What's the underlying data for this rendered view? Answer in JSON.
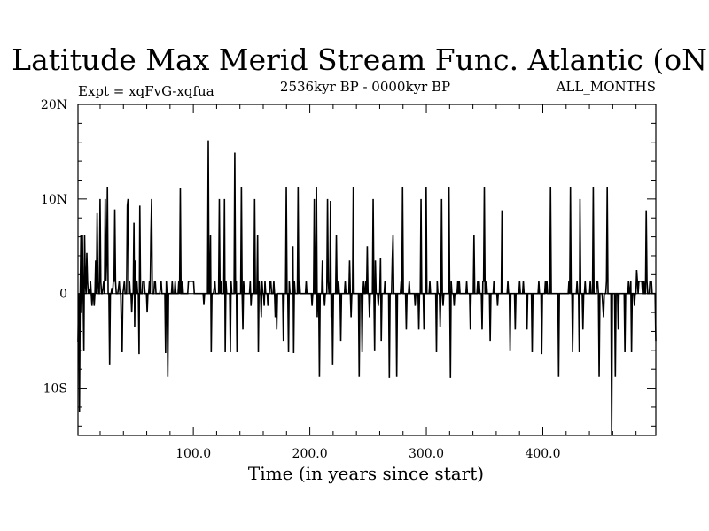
{
  "chart_data": {
    "type": "line",
    "title": "Latitude Max Merid Stream Func. Atlantic (oN)",
    "subtitle_left": "Expt = xqFvG-xqfua",
    "subtitle_center": "2536kyr BP - 0000kyr BP",
    "subtitle_right": "ALL_MONTHS",
    "xlabel": "Time (in years since start)",
    "ylabel": "",
    "xlim": [
      1,
      497
    ],
    "ylim": [
      -15,
      20
    ],
    "grid": false,
    "x_ticks": [
      {
        "value": 100,
        "label": "100.0"
      },
      {
        "value": 200,
        "label": "200.0"
      },
      {
        "value": 300,
        "label": "300.0"
      },
      {
        "value": 400,
        "label": "400.0"
      }
    ],
    "y_ticks": [
      {
        "value": 20,
        "label": "20N"
      },
      {
        "value": 10,
        "label": "10N"
      },
      {
        "value": 0,
        "label": "0"
      },
      {
        "value": -10,
        "label": "10S"
      }
    ],
    "series": [
      {
        "values": [
          -5.1,
          0,
          -12.5,
          0,
          6.2,
          -2,
          6.2,
          0,
          -6.1,
          6.2,
          1.2,
          0,
          4.3,
          1.3,
          0,
          0.5,
          0,
          1.3,
          0,
          -1.3,
          0,
          0,
          -1.3,
          0,
          3.5,
          0,
          8.5,
          1.3,
          0,
          0,
          10,
          1.3,
          0,
          0,
          0.6,
          1.3,
          0,
          10,
          1.3,
          3.5,
          11.3,
          0,
          0,
          -7.5,
          0,
          0,
          0.6,
          0,
          1.3,
          1.3,
          8.9,
          1.3,
          0,
          0,
          0,
          0.6,
          1.3,
          0,
          0,
          -3.8,
          -6.2,
          0,
          0.6,
          1.3,
          0,
          0,
          0,
          9.3,
          10,
          0,
          1.3,
          0,
          0,
          -2,
          0,
          0,
          7.5,
          -3.5,
          3.5,
          0,
          1.3,
          0,
          0,
          -6.4,
          9.3,
          0,
          0,
          0,
          1.3,
          1.3,
          1.3,
          0,
          0,
          0,
          -2,
          0,
          0,
          1.3,
          0,
          6.2,
          10,
          0,
          0,
          0,
          1.3,
          1.3,
          0,
          0,
          0,
          0,
          0,
          0,
          0.6,
          1.3,
          0,
          0,
          0,
          0,
          0,
          -6.3,
          1.3,
          0,
          -8.8,
          0,
          0,
          0,
          0,
          0,
          1.3,
          0,
          0,
          0,
          1.3,
          0,
          0,
          0,
          0,
          1.3,
          0,
          11.2,
          0,
          0,
          1.3,
          0,
          0,
          0,
          0,
          0,
          0,
          0,
          1.3,
          1.3,
          1.3,
          1.3,
          1.3,
          1.3,
          1.3,
          1.3,
          0,
          0,
          0,
          0,
          0,
          0,
          0,
          0,
          0,
          0,
          0,
          0,
          0,
          -1.2,
          0,
          0,
          0,
          0,
          0,
          16.2,
          0,
          0,
          6.2,
          -6.2,
          0,
          0,
          0,
          0.6,
          1.3,
          0,
          0,
          0,
          0,
          0,
          10,
          0,
          1.3,
          0,
          0,
          0,
          0,
          10,
          -6.2,
          1.3,
          0,
          0,
          0,
          0,
          0,
          -6.2,
          1.3,
          0,
          0,
          0,
          0,
          14.9,
          0,
          1.3,
          -6.2,
          0,
          0,
          0,
          0,
          0,
          11.3,
          0,
          -3.8,
          1.3,
          0,
          0,
          0,
          0,
          0,
          0,
          0,
          0,
          1.3,
          -1.3,
          0,
          0,
          0,
          0,
          10,
          0,
          0,
          0,
          6.2,
          -6.2,
          1.3,
          0,
          0,
          -2.5,
          1.3,
          0,
          0,
          -1.3,
          1.3,
          0,
          0,
          0,
          -1.3,
          0,
          0,
          1.3,
          1.3,
          0,
          0,
          0,
          1.3,
          0,
          -2.5,
          0,
          -3.8,
          0,
          0,
          0,
          0,
          0,
          0,
          0,
          0,
          -5,
          0,
          0,
          0,
          11.3,
          0,
          0,
          -6.2,
          1.3,
          0,
          0,
          0,
          0,
          5,
          -6.3,
          1.3,
          0,
          0,
          0,
          0,
          11.3,
          0,
          1.3,
          0,
          0,
          0,
          0,
          0,
          0,
          0,
          0,
          1.3,
          0,
          0,
          0,
          0,
          0,
          0,
          0,
          -1.3,
          0,
          0,
          10,
          0,
          0,
          11.3,
          -2.5,
          0,
          0,
          -8.8,
          0,
          0,
          0,
          3.5,
          0,
          0,
          -1.3,
          0,
          0,
          0,
          10,
          1.3,
          0,
          0,
          9.8,
          -2.5,
          0,
          -7.5,
          0,
          0,
          0,
          0,
          6.2,
          0,
          0,
          1.3,
          0,
          0,
          -5,
          0,
          0,
          0,
          0,
          0,
          1.3,
          0,
          0,
          0,
          0,
          0,
          3.5,
          0,
          -2.5,
          0,
          0,
          11.3,
          0,
          0,
          0,
          0,
          0,
          0,
          0,
          -8.8,
          0,
          0,
          0,
          -6.2,
          0,
          1.3,
          0,
          0,
          1.3,
          0,
          5,
          0,
          0,
          -2.5,
          0,
          0,
          0,
          0,
          10,
          0,
          -6.1,
          3.5,
          0,
          0,
          0,
          -1.3,
          0,
          0,
          3.8,
          -5,
          0,
          0,
          0,
          0,
          1.3,
          0,
          0,
          0,
          0,
          0,
          -8.9,
          0,
          0,
          0,
          3.7,
          6.2,
          0,
          0,
          0,
          0,
          -8.8,
          0,
          0,
          0,
          0,
          0,
          1.3,
          0,
          11.3,
          0,
          0,
          0,
          0,
          -3.8,
          0,
          0,
          0,
          1.3,
          0,
          0,
          0,
          0,
          0,
          0,
          0,
          -1.3,
          0,
          0,
          0,
          0,
          -3.8,
          0,
          0,
          10,
          0,
          0,
          0,
          -3.8,
          0,
          0,
          11.3,
          0,
          0,
          0,
          0,
          1.3,
          0,
          0,
          0,
          0,
          0,
          0,
          0,
          0,
          -6.2,
          1.3,
          0,
          0,
          0,
          -3.5,
          0,
          10,
          0,
          -1.3,
          0,
          0,
          0,
          0,
          0,
          0,
          0,
          11.3,
          0,
          -8.9,
          1.3,
          0,
          0,
          0,
          -1.3,
          0,
          0,
          0,
          0,
          1.3,
          0,
          1.3,
          0,
          0,
          0,
          0,
          0,
          0,
          0,
          0,
          0,
          1.3,
          0,
          0,
          0,
          0,
          -3.8,
          0,
          0,
          0,
          0,
          6.2,
          0,
          0,
          0,
          0,
          1.3,
          0,
          1.3,
          0,
          0,
          0,
          -3.8,
          1.3,
          1.3,
          11.3,
          0,
          0,
          1.3,
          0,
          0,
          0,
          0,
          -5,
          0,
          0,
          0,
          0,
          1.3,
          0,
          0,
          0,
          0,
          -1.3,
          0,
          0,
          0,
          0,
          0,
          8.8,
          0,
          0,
          0,
          0,
          0,
          0,
          0,
          1.3,
          0,
          0,
          -6.1,
          0,
          0,
          0,
          0,
          0,
          0,
          -3.8,
          0,
          0,
          0,
          0,
          0,
          1.3,
          0,
          0,
          0,
          0,
          1.3,
          0,
          0,
          0,
          0,
          -3.8,
          0,
          0,
          0,
          0,
          0,
          0,
          -6.2,
          0,
          0,
          0,
          0,
          0,
          0,
          0,
          0,
          1.3,
          0,
          0,
          0,
          -6.4,
          0,
          0,
          0,
          0,
          1.3,
          0,
          1.3,
          0,
          0,
          0,
          0,
          11.3,
          0,
          0,
          0,
          0,
          0,
          0,
          0,
          0,
          0,
          0,
          -8.8,
          0,
          0,
          0,
          0,
          0,
          0,
          0,
          0,
          0,
          0,
          0,
          0,
          0,
          1.3,
          0,
          11.3,
          0,
          0,
          -6.2,
          0,
          0,
          0,
          0,
          0,
          1.3,
          0,
          0,
          -6.2,
          10,
          0,
          0,
          0,
          -3.8,
          0,
          0,
          1.3,
          0,
          0,
          0,
          0,
          0,
          0,
          1.3,
          0,
          0,
          0,
          11.3,
          0,
          0,
          0,
          0,
          1.3,
          1.3,
          0,
          -8.8,
          0,
          0,
          0,
          0,
          -1.3,
          -2.5,
          0,
          0,
          0,
          1.3,
          11.3,
          0,
          0,
          0,
          0,
          0,
          -15,
          0,
          0,
          0,
          0,
          -8.8,
          0,
          0,
          0,
          -3.8,
          0,
          0,
          0,
          0,
          0,
          0,
          0,
          0,
          -6.2,
          0,
          0,
          0,
          0,
          1.3,
          0,
          0,
          1.3,
          -6.2,
          0,
          0,
          0,
          -1.3,
          0,
          0,
          2.5,
          1.3,
          0,
          1.3,
          1.3,
          1.3,
          1.3,
          1.3,
          0,
          0,
          1.3,
          0,
          0,
          8.8,
          1.3,
          0,
          0,
          0,
          1.3,
          1.3,
          1.3,
          0,
          0,
          0,
          0,
          0,
          -5
        ]
      }
    ]
  }
}
